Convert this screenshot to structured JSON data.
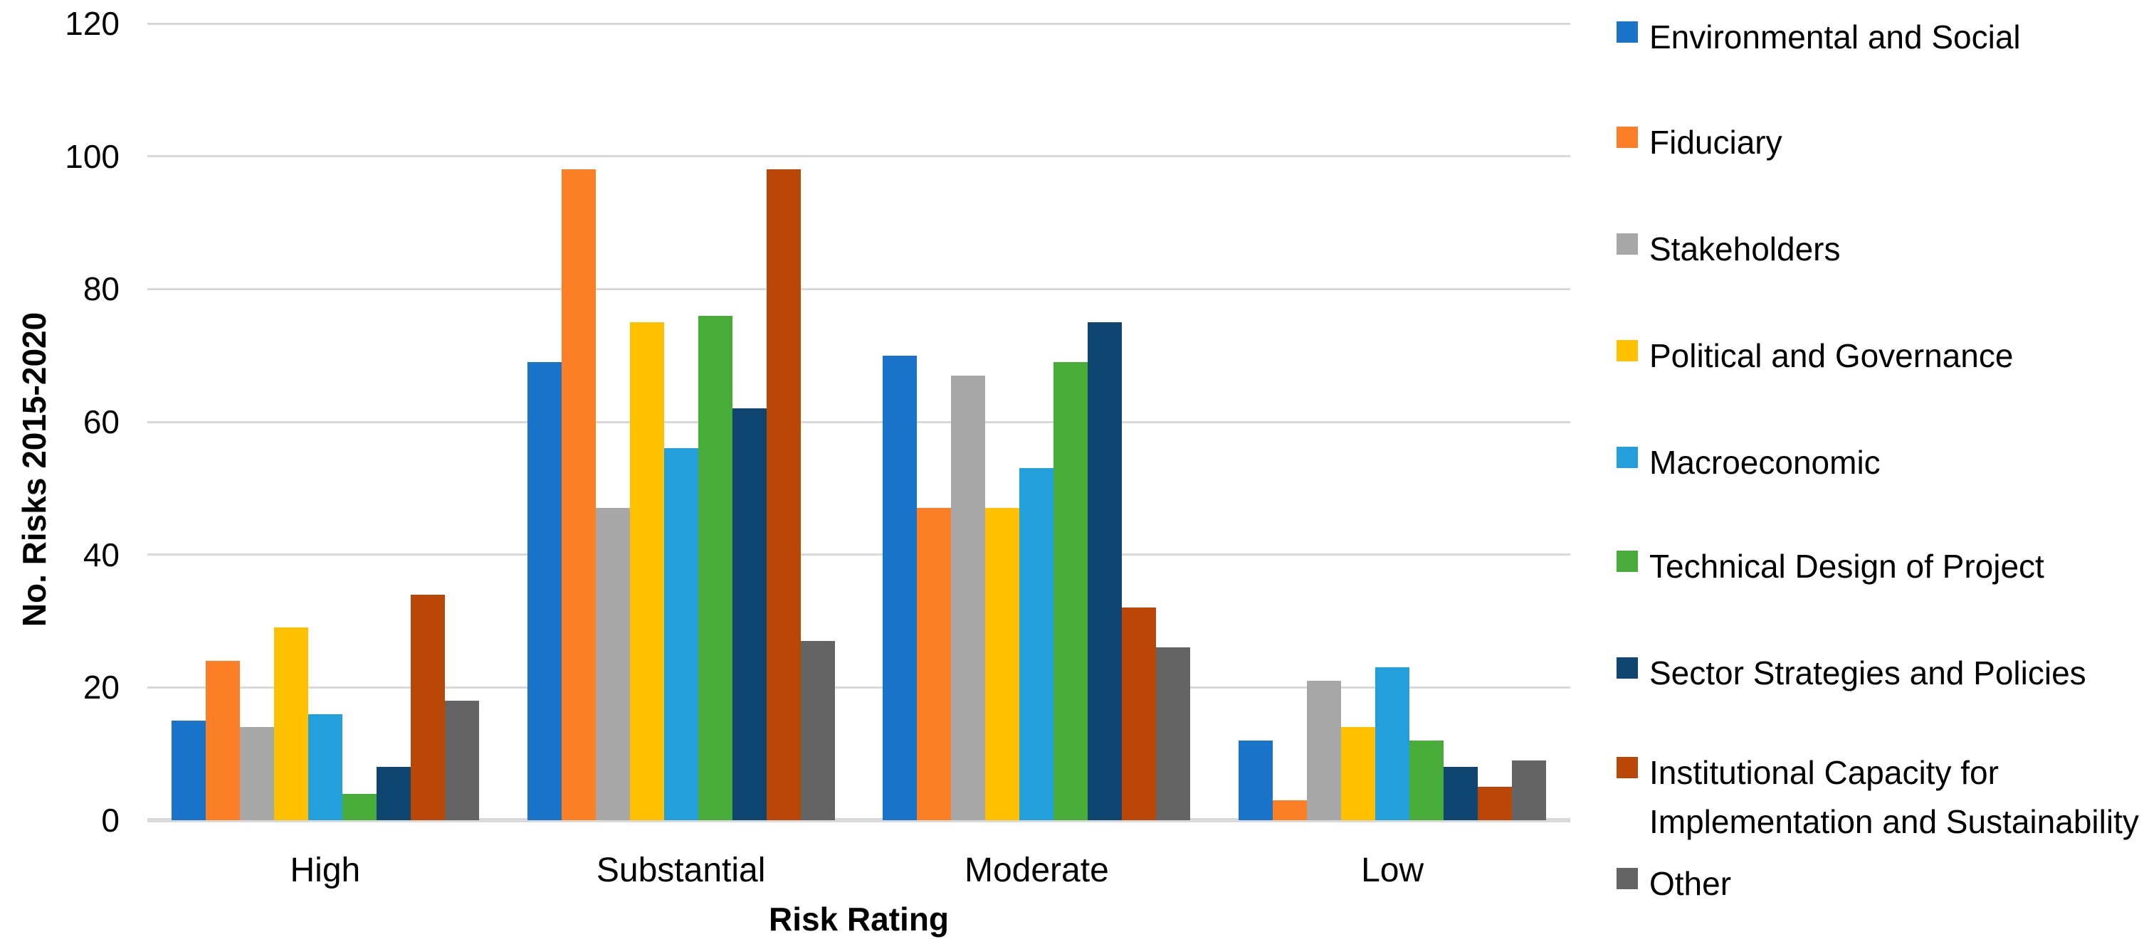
{
  "chart_data": {
    "type": "bar",
    "title": "",
    "categories": [
      "High",
      "Substantial",
      "Moderate",
      "Low"
    ],
    "series": [
      {
        "name": "Environmental and Social",
        "color": "#1A74CA",
        "values": [
          15,
          69,
          70,
          12
        ]
      },
      {
        "name": "Fiduciary",
        "color": "#FC7E27",
        "values": [
          24,
          98,
          47,
          3
        ]
      },
      {
        "name": "Stakeholders",
        "color": "#A7A7A7",
        "values": [
          14,
          47,
          67,
          21
        ]
      },
      {
        "name": "Political and Governance",
        "color": "#FFC000",
        "values": [
          29,
          75,
          47,
          14
        ]
      },
      {
        "name": "Macroeconomic",
        "color": "#23A0DC",
        "values": [
          16,
          56,
          53,
          23
        ]
      },
      {
        "name": "Technical Design of Project",
        "color": "#48AD38",
        "values": [
          4,
          76,
          69,
          12
        ]
      },
      {
        "name": "Sector Strategies and Policies",
        "color": "#0E4571",
        "values": [
          8,
          62,
          75,
          8
        ]
      },
      {
        "name": "Institutional Capacity for Implementation and Sustainability",
        "color": "#BA4708",
        "values": [
          34,
          98,
          32,
          5
        ]
      },
      {
        "name": "Other",
        "color": "#646464",
        "values": [
          18,
          27,
          26,
          9
        ]
      }
    ],
    "xlabel": "Risk Rating",
    "ylabel": "No. Risks 2015-2020",
    "ylim": [
      0,
      120
    ],
    "yticks": [
      0,
      20,
      40,
      60,
      80,
      100,
      120
    ],
    "grid": true,
    "legend_position": "right"
  },
  "colors": {
    "gridline": "#D9D9D9",
    "background": "#FFFFFF",
    "text": "#000000"
  }
}
